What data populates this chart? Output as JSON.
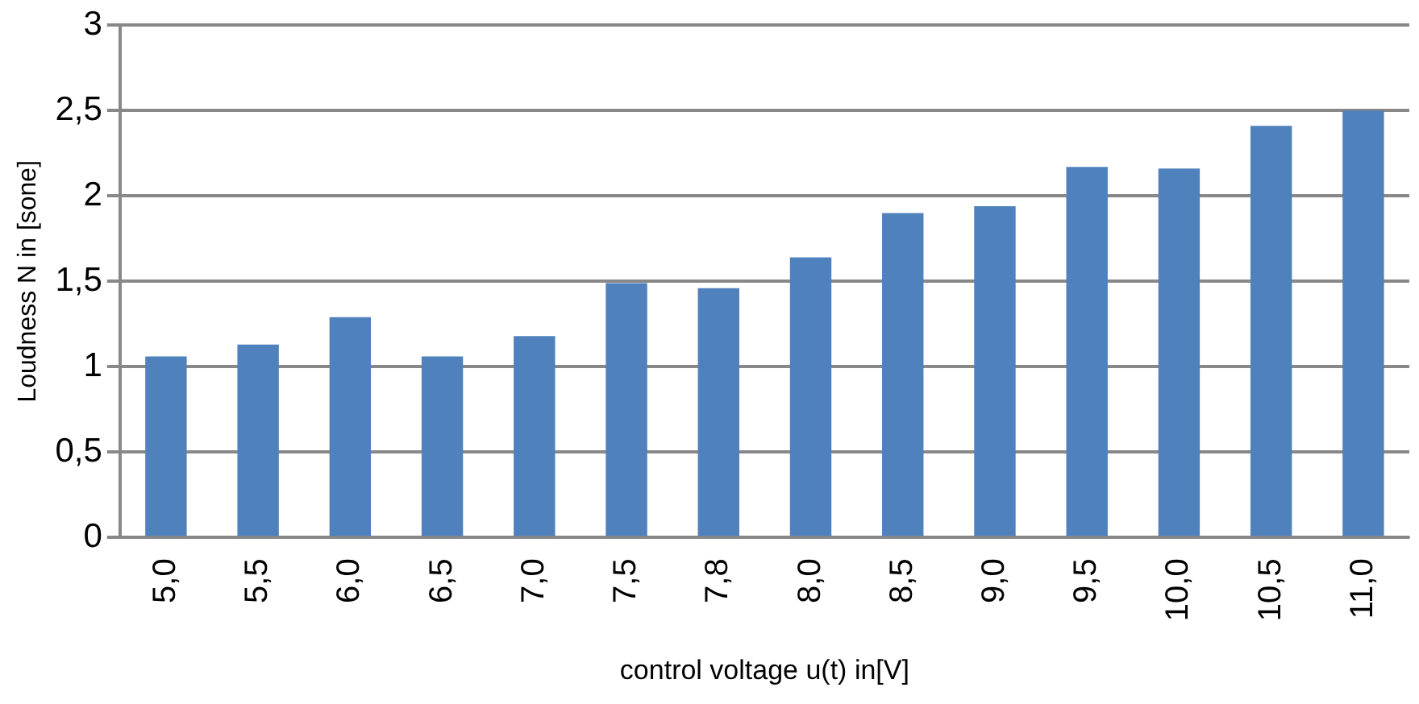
{
  "chart_data": {
    "type": "bar",
    "xlabel": "control voltage u(t) in[V]",
    "ylabel": "Loudness N in [sone]",
    "categories": [
      "5,0",
      "5,5",
      "6,0",
      "6,5",
      "7,0",
      "7,5",
      "7,8",
      "8,0",
      "8,5",
      "9,0",
      "9,5",
      "10,0",
      "10,5",
      "11,0"
    ],
    "values": [
      1.06,
      1.13,
      1.29,
      1.06,
      1.18,
      1.49,
      1.46,
      1.64,
      1.9,
      1.94,
      2.17,
      2.16,
      2.41,
      2.5
    ],
    "color": "#4f81bd",
    "ylim": [
      0,
      3
    ],
    "yticks": [
      0,
      {
        "value": 0.5,
        "label": "0,5"
      },
      1,
      {
        "value": 1.5,
        "label": "1,5"
      },
      2,
      {
        "value": 2.5,
        "label": "2,5"
      },
      3
    ],
    "grid": "y",
    "legend": false
  }
}
